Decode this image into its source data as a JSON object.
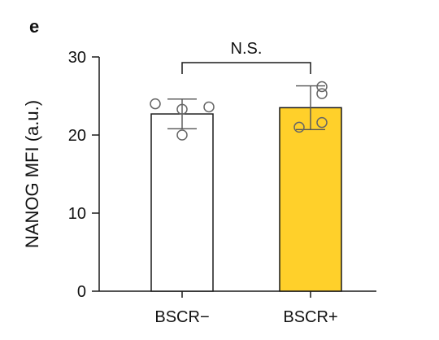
{
  "chart_data": {
    "type": "bar",
    "panel_label": "e",
    "ylabel": "NANOG MFI (a.u.)",
    "ylim": [
      0,
      30
    ],
    "yticks": [
      0,
      10,
      20,
      30
    ],
    "categories": [
      "BSCR−",
      "BSCR+"
    ],
    "values": [
      22.7,
      23.5
    ],
    "errors": [
      1.9,
      2.8
    ],
    "points": [
      [
        24.0,
        23.3,
        23.6,
        20.0
      ],
      [
        25.3,
        26.2,
        21.0,
        21.6
      ]
    ],
    "bar_colors": [
      "#ffffff",
      "#ffd02a"
    ],
    "significance": {
      "between": [
        0,
        1
      ],
      "label": "N.S."
    },
    "grid": false,
    "legend": "none"
  }
}
